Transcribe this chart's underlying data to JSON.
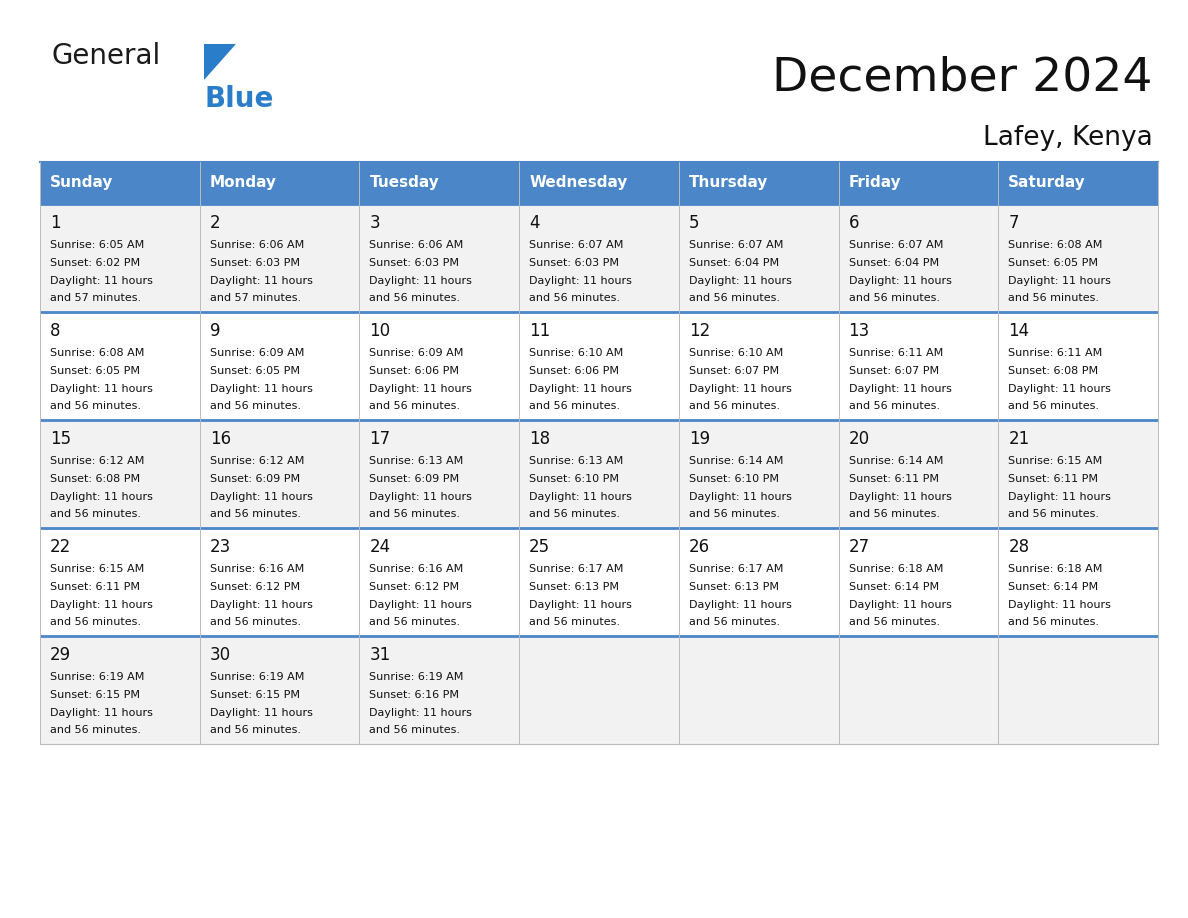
{
  "title": "December 2024",
  "subtitle": "Lafey, Kenya",
  "header_color": "#4a86c8",
  "header_text_color": "#ffffff",
  "days_of_week": [
    "Sunday",
    "Monday",
    "Tuesday",
    "Wednesday",
    "Thursday",
    "Friday",
    "Saturday"
  ],
  "row_bg_even": "#f2f2f2",
  "row_bg_odd": "#ffffff",
  "divider_color": "#4a86c8",
  "text_color": "#111111",
  "border_color": "#bbbbbb",
  "calendar_data": [
    [
      {
        "day": "1",
        "sunrise": "6:05 AM",
        "sunset": "6:02 PM",
        "dl1": "Daylight: 11 hours",
        "dl2": "and 57 minutes."
      },
      {
        "day": "2",
        "sunrise": "6:06 AM",
        "sunset": "6:03 PM",
        "dl1": "Daylight: 11 hours",
        "dl2": "and 57 minutes."
      },
      {
        "day": "3",
        "sunrise": "6:06 AM",
        "sunset": "6:03 PM",
        "dl1": "Daylight: 11 hours",
        "dl2": "and 56 minutes."
      },
      {
        "day": "4",
        "sunrise": "6:07 AM",
        "sunset": "6:03 PM",
        "dl1": "Daylight: 11 hours",
        "dl2": "and 56 minutes."
      },
      {
        "day": "5",
        "sunrise": "6:07 AM",
        "sunset": "6:04 PM",
        "dl1": "Daylight: 11 hours",
        "dl2": "and 56 minutes."
      },
      {
        "day": "6",
        "sunrise": "6:07 AM",
        "sunset": "6:04 PM",
        "dl1": "Daylight: 11 hours",
        "dl2": "and 56 minutes."
      },
      {
        "day": "7",
        "sunrise": "6:08 AM",
        "sunset": "6:05 PM",
        "dl1": "Daylight: 11 hours",
        "dl2": "and 56 minutes."
      }
    ],
    [
      {
        "day": "8",
        "sunrise": "6:08 AM",
        "sunset": "6:05 PM",
        "dl1": "Daylight: 11 hours",
        "dl2": "and 56 minutes."
      },
      {
        "day": "9",
        "sunrise": "6:09 AM",
        "sunset": "6:05 PM",
        "dl1": "Daylight: 11 hours",
        "dl2": "and 56 minutes."
      },
      {
        "day": "10",
        "sunrise": "6:09 AM",
        "sunset": "6:06 PM",
        "dl1": "Daylight: 11 hours",
        "dl2": "and 56 minutes."
      },
      {
        "day": "11",
        "sunrise": "6:10 AM",
        "sunset": "6:06 PM",
        "dl1": "Daylight: 11 hours",
        "dl2": "and 56 minutes."
      },
      {
        "day": "12",
        "sunrise": "6:10 AM",
        "sunset": "6:07 PM",
        "dl1": "Daylight: 11 hours",
        "dl2": "and 56 minutes."
      },
      {
        "day": "13",
        "sunrise": "6:11 AM",
        "sunset": "6:07 PM",
        "dl1": "Daylight: 11 hours",
        "dl2": "and 56 minutes."
      },
      {
        "day": "14",
        "sunrise": "6:11 AM",
        "sunset": "6:08 PM",
        "dl1": "Daylight: 11 hours",
        "dl2": "and 56 minutes."
      }
    ],
    [
      {
        "day": "15",
        "sunrise": "6:12 AM",
        "sunset": "6:08 PM",
        "dl1": "Daylight: 11 hours",
        "dl2": "and 56 minutes."
      },
      {
        "day": "16",
        "sunrise": "6:12 AM",
        "sunset": "6:09 PM",
        "dl1": "Daylight: 11 hours",
        "dl2": "and 56 minutes."
      },
      {
        "day": "17",
        "sunrise": "6:13 AM",
        "sunset": "6:09 PM",
        "dl1": "Daylight: 11 hours",
        "dl2": "and 56 minutes."
      },
      {
        "day": "18",
        "sunrise": "6:13 AM",
        "sunset": "6:10 PM",
        "dl1": "Daylight: 11 hours",
        "dl2": "and 56 minutes."
      },
      {
        "day": "19",
        "sunrise": "6:14 AM",
        "sunset": "6:10 PM",
        "dl1": "Daylight: 11 hours",
        "dl2": "and 56 minutes."
      },
      {
        "day": "20",
        "sunrise": "6:14 AM",
        "sunset": "6:11 PM",
        "dl1": "Daylight: 11 hours",
        "dl2": "and 56 minutes."
      },
      {
        "day": "21",
        "sunrise": "6:15 AM",
        "sunset": "6:11 PM",
        "dl1": "Daylight: 11 hours",
        "dl2": "and 56 minutes."
      }
    ],
    [
      {
        "day": "22",
        "sunrise": "6:15 AM",
        "sunset": "6:11 PM",
        "dl1": "Daylight: 11 hours",
        "dl2": "and 56 minutes."
      },
      {
        "day": "23",
        "sunrise": "6:16 AM",
        "sunset": "6:12 PM",
        "dl1": "Daylight: 11 hours",
        "dl2": "and 56 minutes."
      },
      {
        "day": "24",
        "sunrise": "6:16 AM",
        "sunset": "6:12 PM",
        "dl1": "Daylight: 11 hours",
        "dl2": "and 56 minutes."
      },
      {
        "day": "25",
        "sunrise": "6:17 AM",
        "sunset": "6:13 PM",
        "dl1": "Daylight: 11 hours",
        "dl2": "and 56 minutes."
      },
      {
        "day": "26",
        "sunrise": "6:17 AM",
        "sunset": "6:13 PM",
        "dl1": "Daylight: 11 hours",
        "dl2": "and 56 minutes."
      },
      {
        "day": "27",
        "sunrise": "6:18 AM",
        "sunset": "6:14 PM",
        "dl1": "Daylight: 11 hours",
        "dl2": "and 56 minutes."
      },
      {
        "day": "28",
        "sunrise": "6:18 AM",
        "sunset": "6:14 PM",
        "dl1": "Daylight: 11 hours",
        "dl2": "and 56 minutes."
      }
    ],
    [
      {
        "day": "29",
        "sunrise": "6:19 AM",
        "sunset": "6:15 PM",
        "dl1": "Daylight: 11 hours",
        "dl2": "and 56 minutes."
      },
      {
        "day": "30",
        "sunrise": "6:19 AM",
        "sunset": "6:15 PM",
        "dl1": "Daylight: 11 hours",
        "dl2": "and 56 minutes."
      },
      {
        "day": "31",
        "sunrise": "6:19 AM",
        "sunset": "6:16 PM",
        "dl1": "Daylight: 11 hours",
        "dl2": "and 56 minutes."
      },
      null,
      null,
      null,
      null
    ]
  ]
}
